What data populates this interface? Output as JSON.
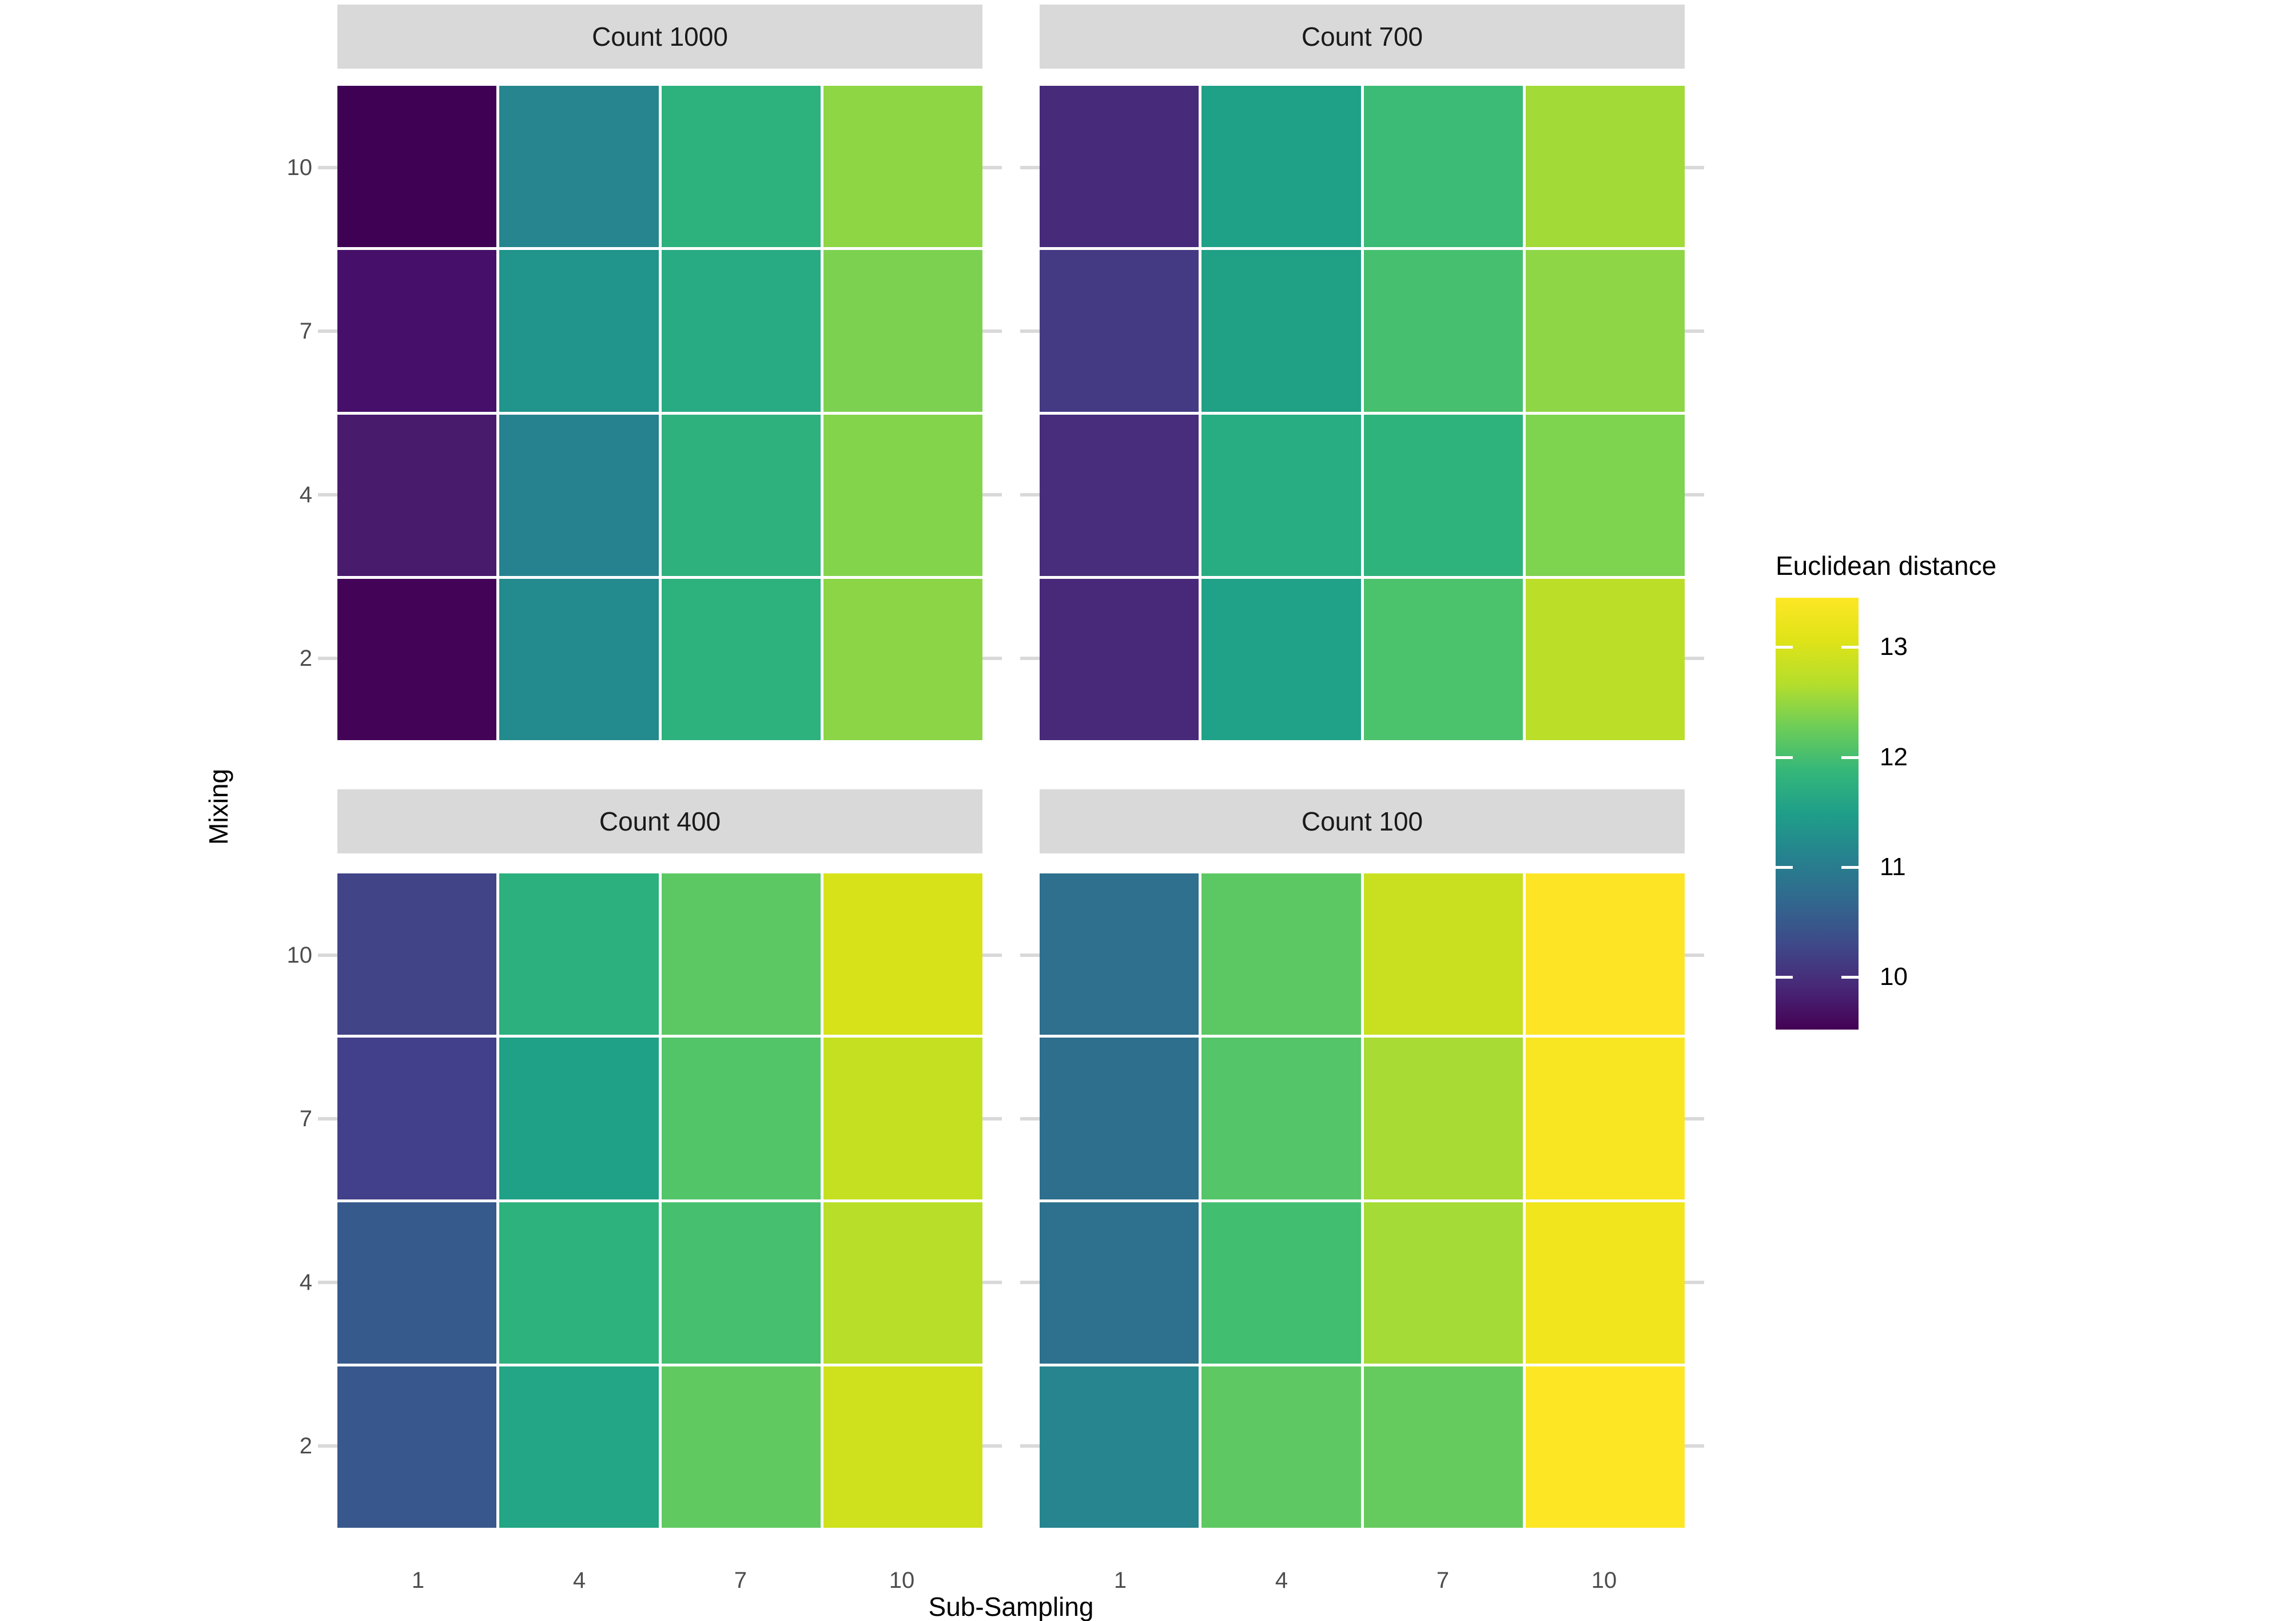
{
  "axes": {
    "x": {
      "title": "Sub-Sampling",
      "tick_labels": [
        "1",
        "4",
        "7",
        "10"
      ]
    },
    "y": {
      "title": "Mixing",
      "tick_labels": [
        "10",
        "7",
        "4",
        "2"
      ]
    }
  },
  "legend": {
    "title": "Euclidean distance",
    "domain": [
      9.52,
      13.45
    ],
    "ticks": [
      {
        "label": "13",
        "value": 13
      },
      {
        "label": "12",
        "value": 12
      },
      {
        "label": "11",
        "value": 11
      },
      {
        "label": "10",
        "value": 10
      }
    ],
    "gradient": [
      "#440154",
      "#482878",
      "#3E4A89",
      "#31688E",
      "#26828E",
      "#1F9E89",
      "#35B779",
      "#6DCD59",
      "#B4DE2C",
      "#DFE318",
      "#FDE725"
    ]
  },
  "colors": {
    "background": "#FFFFFF",
    "strip_bg": "#D9D9D9",
    "strip_text": "#1A1A1A",
    "tick_label": "#4D4D4D",
    "axis_title": "#000000",
    "tick_mark": "#D9D9D9",
    "cell_gap": "#FFFFFF"
  },
  "chart_data": {
    "type": "heatmap",
    "facet_variable": "Count",
    "xlabel": "Sub-Sampling",
    "ylabel": "Mixing",
    "x": [
      1,
      4,
      7,
      10
    ],
    "y_top_to_bottom": [
      10,
      7,
      4,
      2
    ],
    "color_scale": {
      "name": "viridis",
      "legend_title": "Euclidean distance",
      "domain": [
        9.52,
        13.45
      ]
    },
    "facets": [
      {
        "label": "Count 1000",
        "position": "top-left",
        "values": [
          [
            9.5,
            11.2,
            11.85,
            12.45
          ],
          [
            9.75,
            11.35,
            11.65,
            12.3
          ],
          [
            9.85,
            11.2,
            11.8,
            12.35
          ],
          [
            9.6,
            11.25,
            11.85,
            12.45
          ]
        ],
        "colors": [
          [
            "#3F0154",
            "#26858E",
            "#2DB27D",
            "#8FD644"
          ],
          [
            "#46106A",
            "#21948B",
            "#28AB82",
            "#7CD250"
          ],
          [
            "#481B6D",
            "#26828E",
            "#2EB17D",
            "#84D44B"
          ],
          [
            "#430458",
            "#238A8D",
            "#2DB27D",
            "#8BD546"
          ]
        ]
      },
      {
        "label": "Count 700",
        "position": "top-right",
        "values": [
          [
            9.95,
            11.5,
            11.95,
            12.6
          ],
          [
            10.1,
            11.45,
            12.0,
            12.45
          ],
          [
            9.95,
            11.6,
            11.8,
            12.3
          ],
          [
            9.95,
            11.5,
            12.05,
            12.8
          ]
        ],
        "colors": [
          [
            "#472A7A",
            "#1FA188",
            "#3BBB75",
            "#A2DA37"
          ],
          [
            "#443A83",
            "#20A186",
            "#46C06F",
            "#8ED645"
          ],
          [
            "#472D7B",
            "#27AD81",
            "#2EB37C",
            "#7ED34F"
          ],
          [
            "#482979",
            "#1FA287",
            "#4BC26C",
            "#BBDE28"
          ]
        ]
      },
      {
        "label": "Count 400",
        "position": "bottom-left",
        "values": [
          [
            10.25,
            11.75,
            12.1,
            12.95
          ],
          [
            10.2,
            11.5,
            12.05,
            12.85
          ],
          [
            10.5,
            11.8,
            12.0,
            12.8
          ],
          [
            10.5,
            11.55,
            12.1,
            12.9
          ]
        ],
        "colors": [
          [
            "#414487",
            "#2BB07E",
            "#5CC863",
            "#D8E219"
          ],
          [
            "#42408A",
            "#1FA187",
            "#52C569",
            "#C5E021"
          ],
          [
            "#375A8C",
            "#2DB27D",
            "#46C06F",
            "#B8DE29"
          ],
          [
            "#38578C",
            "#22A685",
            "#60CA60",
            "#CFE11C"
          ]
        ]
      },
      {
        "label": "Count 100",
        "position": "bottom-right",
        "values": [
          [
            10.85,
            12.1,
            12.9,
            13.4
          ],
          [
            10.85,
            12.05,
            12.65,
            13.35
          ],
          [
            10.85,
            11.95,
            12.65,
            13.3
          ],
          [
            11.05,
            12.1,
            12.15,
            13.4
          ]
        ],
        "colors": [
          [
            "#2E708E",
            "#5CC863",
            "#C8E020",
            "#FDE525"
          ],
          [
            "#2E6F8E",
            "#54C568",
            "#A8DB33",
            "#F8E622"
          ],
          [
            "#2D718E",
            "#42BE71",
            "#A5DB36",
            "#F1E51D"
          ],
          [
            "#26858E",
            "#5EC962",
            "#65CB5E",
            "#FDE725"
          ]
        ]
      }
    ]
  }
}
